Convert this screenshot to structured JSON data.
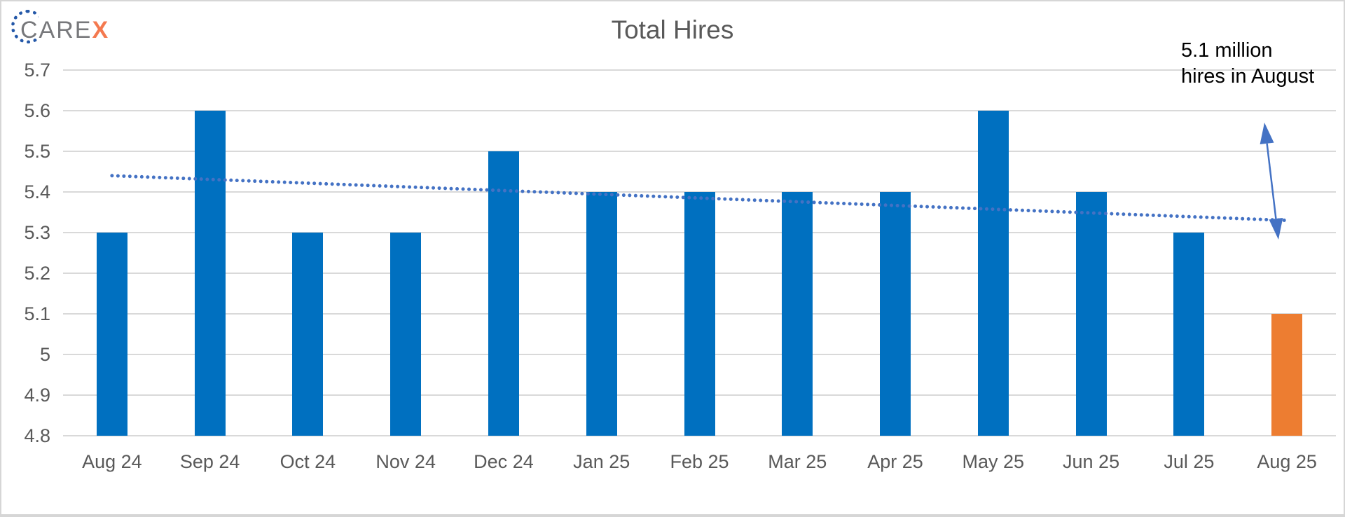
{
  "logo": {
    "care": "CARE",
    "x": "X"
  },
  "annotation": {
    "line1": "5.1 million",
    "line2": "hires in August"
  },
  "chart_data": {
    "type": "bar",
    "title": "Total Hires",
    "xlabel": "",
    "ylabel": "",
    "unit": "millions of hires",
    "categories": [
      "Aug 24",
      "Sep 24",
      "Oct 24",
      "Nov 24",
      "Dec 24",
      "Jan 25",
      "Feb 25",
      "Mar 25",
      "Apr 25",
      "May 25",
      "Jun 25",
      "Jul 25",
      "Aug 25"
    ],
    "values": [
      5.3,
      5.6,
      5.3,
      5.3,
      5.5,
      5.4,
      5.4,
      5.4,
      5.4,
      5.6,
      5.4,
      5.3,
      5.1
    ],
    "highlight_index": 12,
    "ylim": [
      4.8,
      5.7
    ],
    "ytick_labels": [
      "5.7",
      "5.6",
      "5.5",
      "5.4",
      "5.3",
      "5.2",
      "5.1",
      "5",
      "4.9",
      "4.8"
    ],
    "grid": true,
    "legend": false,
    "trendline": {
      "type": "linear",
      "style": "dotted",
      "start_value": 5.44,
      "end_value": 5.33
    }
  },
  "colors": {
    "bar_blue": "#0070C0",
    "bar_orange": "#ED7D31",
    "trendline_blue": "#4472C4",
    "arrow_blue": "#4472C4",
    "gridline": "#D9D9D9",
    "axis_text": "#595959",
    "title_text": "#595959",
    "annotation_text": "#000000",
    "logo_gray": "#77787B",
    "logo_orange": "#F4794F",
    "logo_ring_blue": "#2458A8"
  }
}
